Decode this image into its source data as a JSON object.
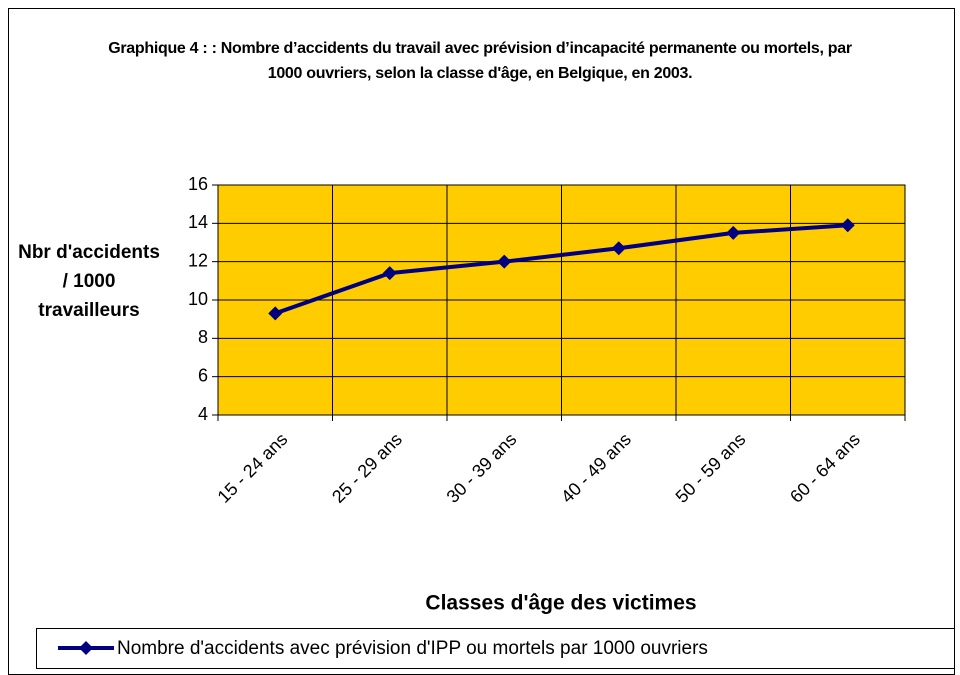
{
  "chart_data": {
    "type": "line",
    "title": "Graphique 4 :  : Nombre d’accidents du travail avec prévision d’incapacité permanente ou mortels, par 1000 ouvriers, selon la classe d'âge,  en Belgique, en 2003.",
    "y_label": "Nbr d'accidents / 1000 travailleurs",
    "x_label": "Classes d'âge des victimes",
    "categories": [
      "15 - 24 ans",
      "25 - 29 ans",
      "30 - 39 ans",
      "40 - 49 ans",
      "50 - 59 ans",
      "60 - 64 ans"
    ],
    "series": [
      {
        "name": "Nombre d'accidents avec prévision d'IPP ou mortels par 1000 ouvriers",
        "color": "#000080",
        "values": [
          9.3,
          11.4,
          12.0,
          12.7,
          13.5,
          13.9
        ]
      }
    ],
    "ylim": [
      4,
      16
    ],
    "yticks": [
      4,
      6,
      8,
      10,
      12,
      14,
      16
    ],
    "grid": true,
    "plot_background": "#ffcc00",
    "legend": "bottom"
  }
}
